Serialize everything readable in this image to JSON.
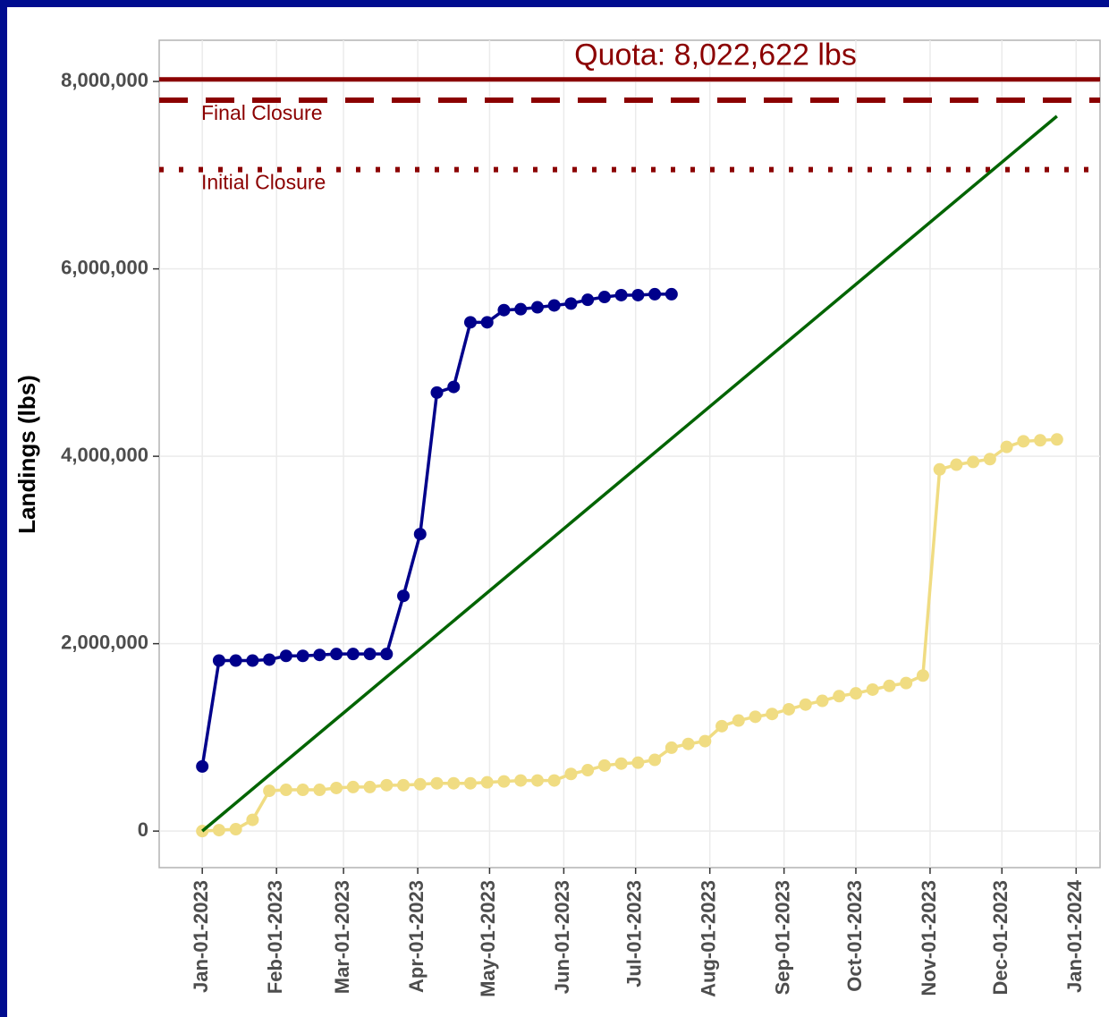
{
  "chart_data": {
    "type": "line",
    "ylabel": "Landings (lbs)",
    "xlim": [
      "2022-12-14",
      "2024-01-11"
    ],
    "ylim": [
      -390000,
      8440000
    ],
    "yticks": [
      0,
      {
        "value": 2000000,
        "label": "2,000,000"
      },
      {
        "value": 4000000,
        "label": "4,000,000"
      },
      {
        "value": 6000000,
        "label": "6,000,000"
      },
      {
        "value": 8000000,
        "label": "8,000,000"
      }
    ],
    "xticks": [
      {
        "value": "2023-01-01",
        "label": "Jan-01-2023"
      },
      {
        "value": "2023-02-01",
        "label": "Feb-01-2023"
      },
      {
        "value": "2023-03-01",
        "label": "Mar-01-2023"
      },
      {
        "value": "2023-04-01",
        "label": "Apr-01-2023"
      },
      {
        "value": "2023-05-01",
        "label": "May-01-2023"
      },
      {
        "value": "2023-06-01",
        "label": "Jun-01-2023"
      },
      {
        "value": "2023-07-01",
        "label": "Jul-01-2023"
      },
      {
        "value": "2023-08-01",
        "label": "Aug-01-2023"
      },
      {
        "value": "2023-09-01",
        "label": "Sep-01-2023"
      },
      {
        "value": "2023-10-01",
        "label": "Oct-01-2023"
      },
      {
        "value": "2023-11-01",
        "label": "Nov-01-2023"
      },
      {
        "value": "2023-12-01",
        "label": "Dec-01-2023"
      },
      {
        "value": "2024-01-01",
        "label": "Jan-01-2024"
      }
    ],
    "grid": true,
    "hlines": [
      {
        "label": "Quota: 8,022,622 lbs",
        "value": 8022622,
        "style": "solid",
        "color": "#8b0000"
      },
      {
        "label": "Final Closure",
        "value": 7800000,
        "style": "dashed",
        "color": "#8b0000"
      },
      {
        "label": "Initial Closure",
        "value": 7060000,
        "style": "dotted",
        "color": "#8b0000"
      }
    ],
    "series": [
      {
        "color": "#f0dc82",
        "markers": true,
        "x": [
          "2023-01-01",
          "2023-01-08",
          "2023-01-15",
          "2023-01-22",
          "2023-01-29",
          "2023-02-05",
          "2023-02-12",
          "2023-02-19",
          "2023-02-26",
          "2023-03-05",
          "2023-03-12",
          "2023-03-19",
          "2023-03-26",
          "2023-04-02",
          "2023-04-09",
          "2023-04-16",
          "2023-04-23",
          "2023-04-30",
          "2023-05-07",
          "2023-05-14",
          "2023-05-21",
          "2023-05-28",
          "2023-06-04",
          "2023-06-11",
          "2023-06-18",
          "2023-06-25",
          "2023-07-02",
          "2023-07-09",
          "2023-07-16",
          "2023-07-23",
          "2023-07-30",
          "2023-08-06",
          "2023-08-13",
          "2023-08-20",
          "2023-08-27",
          "2023-09-03",
          "2023-09-10",
          "2023-09-17",
          "2023-09-24",
          "2023-10-01",
          "2023-10-08",
          "2023-10-15",
          "2023-10-22",
          "2023-10-29",
          "2023-11-05",
          "2023-11-12",
          "2023-11-19",
          "2023-11-26",
          "2023-12-03",
          "2023-12-10",
          "2023-12-17",
          "2023-12-24"
        ],
        "values": [
          0,
          10000,
          20000,
          120000,
          430000,
          440000,
          440000,
          440000,
          460000,
          470000,
          470000,
          490000,
          490000,
          500000,
          510000,
          510000,
          510000,
          520000,
          530000,
          540000,
          540000,
          540000,
          610000,
          650000,
          700000,
          720000,
          730000,
          760000,
          890000,
          930000,
          960000,
          1120000,
          1180000,
          1220000,
          1250000,
          1300000,
          1350000,
          1390000,
          1440000,
          1470000,
          1510000,
          1550000,
          1580000,
          1660000,
          3860000,
          3910000,
          3940000,
          3970000,
          4100000,
          4160000,
          4170000,
          4180000
        ]
      },
      {
        "color": "#00008b",
        "markers": true,
        "x": [
          "2023-01-01",
          "2023-01-08",
          "2023-01-15",
          "2023-01-22",
          "2023-01-29",
          "2023-02-05",
          "2023-02-12",
          "2023-02-19",
          "2023-02-26",
          "2023-03-05",
          "2023-03-12",
          "2023-03-19",
          "2023-03-26",
          "2023-04-02",
          "2023-04-09",
          "2023-04-16",
          "2023-04-23",
          "2023-04-30",
          "2023-05-07",
          "2023-05-14",
          "2023-05-21",
          "2023-05-28",
          "2023-06-04",
          "2023-06-11",
          "2023-06-18",
          "2023-06-25",
          "2023-07-02",
          "2023-07-09",
          "2023-07-16"
        ],
        "values": [
          690000,
          1820000,
          1820000,
          1820000,
          1830000,
          1870000,
          1870000,
          1880000,
          1890000,
          1890000,
          1890000,
          1890000,
          2510000,
          3170000,
          4680000,
          4740000,
          5430000,
          5430000,
          5560000,
          5570000,
          5590000,
          5610000,
          5630000,
          5670000,
          5700000,
          5720000,
          5720000,
          5730000,
          5730000
        ]
      },
      {
        "color": "#006400",
        "markers": false,
        "x": [
          "2023-01-01",
          "2023-12-24"
        ],
        "values": [
          0,
          7630000
        ]
      }
    ]
  }
}
